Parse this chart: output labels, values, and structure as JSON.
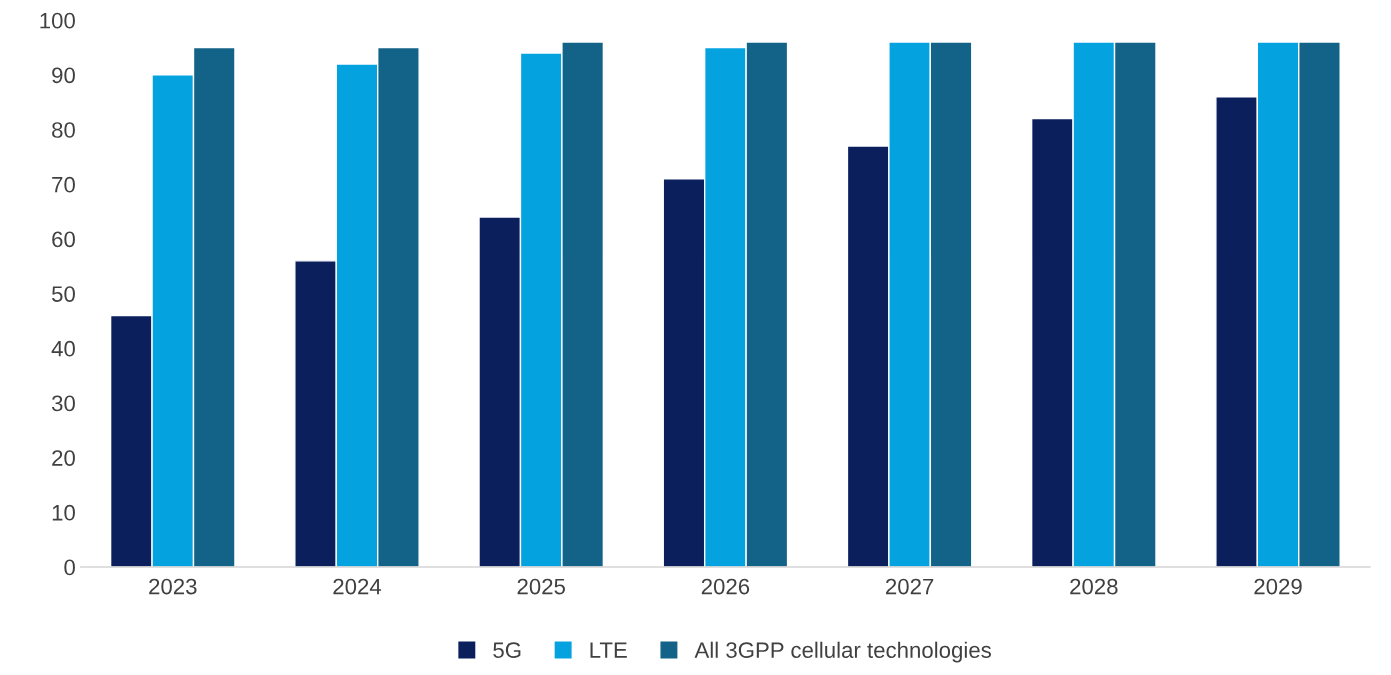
{
  "chart_data": {
    "type": "bar",
    "categories": [
      "2023",
      "2024",
      "2025",
      "2026",
      "2027",
      "2028",
      "2029"
    ],
    "series": [
      {
        "name": "5G",
        "color": "#0a1f5c",
        "values": [
          46,
          56,
          64,
          71,
          77,
          82,
          86
        ]
      },
      {
        "name": "LTE",
        "color": "#04a3e0",
        "values": [
          90,
          92,
          94,
          95,
          96,
          96,
          96
        ]
      },
      {
        "name": "All 3GPP cellular technologies",
        "color": "#136388",
        "values": [
          95,
          95,
          96,
          96,
          96,
          96,
          96
        ]
      }
    ],
    "ylim": [
      0,
      100
    ],
    "yticks": [
      0,
      10,
      20,
      30,
      40,
      50,
      60,
      70,
      80,
      90,
      100
    ],
    "grid": false,
    "legend": "bottom"
  }
}
